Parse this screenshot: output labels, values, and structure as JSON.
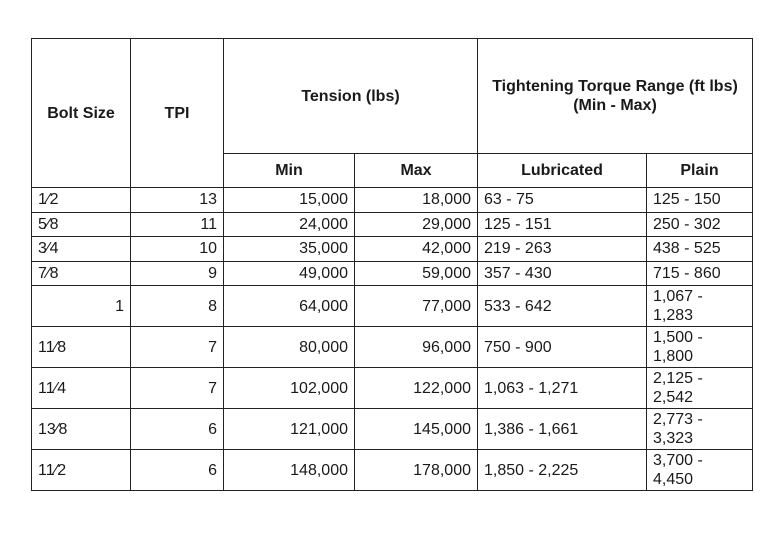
{
  "headers": {
    "bolt_size": "Bolt Size",
    "tpi": "TPI",
    "tension": "Tension (lbs)",
    "torque": "Tightening Torque Range (ft lbs) (Min - Max)",
    "min": "Min",
    "max": "Max",
    "lubricated": "Lubricated",
    "plain": "Plain"
  },
  "rows": [
    {
      "bolt": "1⁄2",
      "tpi": "13",
      "min": "15,000",
      "max": "18,000",
      "lub": "63 - 75",
      "plain": "125 - 150"
    },
    {
      "bolt": "5⁄8",
      "tpi": "11",
      "min": "24,000",
      "max": "29,000",
      "lub": "125 - 151",
      "plain": "250 - 302"
    },
    {
      "bolt": "3⁄4",
      "tpi": "10",
      "min": "35,000",
      "max": "42,000",
      "lub": "219 - 263",
      "plain": "438 - 525"
    },
    {
      "bolt": "7⁄8",
      "tpi": "9",
      "min": "49,000",
      "max": "59,000",
      "lub": "357 - 430",
      "plain": "715 - 860"
    },
    {
      "bolt": "1",
      "tpi": "8",
      "min": "64,000",
      "max": "77,000",
      "lub": "533 - 642",
      "plain": "1,067 - 1,283"
    },
    {
      "bolt": "11⁄8",
      "tpi": "7",
      "min": "80,000",
      "max": "96,000",
      "lub": "750 - 900",
      "plain": "1,500 - 1,800"
    },
    {
      "bolt": "11⁄4",
      "tpi": "7",
      "min": "102,000",
      "max": "122,000",
      "lub": "1,063 - 1,271",
      "plain": "2,125 - 2,542"
    },
    {
      "bolt": "13⁄8",
      "tpi": "6",
      "min": "121,000",
      "max": "145,000",
      "lub": "1,386 - 1,661",
      "plain": "2,773 - 3,323"
    },
    {
      "bolt": "11⁄2",
      "tpi": "6",
      "min": "148,000",
      "max": "178,000",
      "lub": "1,850 - 2,225",
      "plain": "3,700 - 4,450"
    }
  ]
}
